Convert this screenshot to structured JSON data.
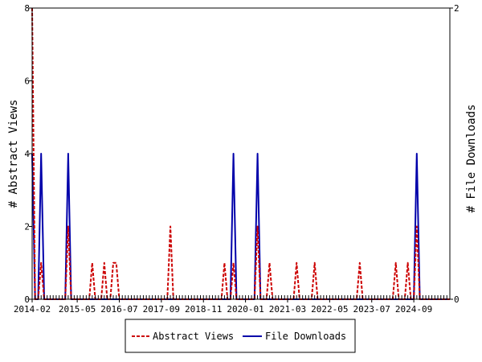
{
  "chart_data": {
    "type": "line",
    "title": "",
    "y_left_label": "# Abstract Views",
    "y_right_label": "# File Downloads",
    "y_left_range": [
      0,
      8
    ],
    "y_left_ticks": [
      "0",
      "2",
      "4",
      "6",
      "8"
    ],
    "y_right_range": [
      0,
      2
    ],
    "y_right_ticks": [
      "0",
      "2"
    ],
    "x_range": [
      "2014-02",
      "2025-09"
    ],
    "x_ticks": [
      "2014-02",
      "2015-05",
      "2016-07",
      "2017-09",
      "2018-11",
      "2020-01",
      "2021-03",
      "2022-05",
      "2023-07",
      "2024-09"
    ],
    "grid": false,
    "legend_position": "bottom",
    "series": [
      {
        "name": "Abstract Views",
        "axis": "left",
        "color": "#cc0000",
        "style": "dashed",
        "points": [
          [
            "2014-02",
            8
          ],
          [
            "2014-03",
            0
          ],
          [
            "2014-04",
            0
          ],
          [
            "2014-05",
            1
          ],
          [
            "2014-06",
            0
          ],
          [
            "2015-01",
            0
          ],
          [
            "2015-02",
            2
          ],
          [
            "2015-03",
            0
          ],
          [
            "2015-09",
            0
          ],
          [
            "2015-10",
            1
          ],
          [
            "2015-11",
            0
          ],
          [
            "2016-01",
            0
          ],
          [
            "2016-02",
            1
          ],
          [
            "2016-03",
            0
          ],
          [
            "2016-04",
            0
          ],
          [
            "2016-05",
            1
          ],
          [
            "2016-06",
            1
          ],
          [
            "2016-07",
            0
          ],
          [
            "2017-11",
            0
          ],
          [
            "2017-12",
            2
          ],
          [
            "2018-01",
            0
          ],
          [
            "2019-05",
            0
          ],
          [
            "2019-06",
            1
          ],
          [
            "2019-07",
            0
          ],
          [
            "2019-08",
            0
          ],
          [
            "2019-09",
            1
          ],
          [
            "2019-10",
            0
          ],
          [
            "2020-04",
            0
          ],
          [
            "2020-05",
            2
          ],
          [
            "2020-06",
            0
          ],
          [
            "2020-08",
            0
          ],
          [
            "2020-09",
            1
          ],
          [
            "2020-10",
            0
          ],
          [
            "2021-05",
            0
          ],
          [
            "2021-06",
            1
          ],
          [
            "2021-07",
            0
          ],
          [
            "2021-11",
            0
          ],
          [
            "2021-12",
            1
          ],
          [
            "2022-01",
            0
          ],
          [
            "2023-02",
            0
          ],
          [
            "2023-03",
            1
          ],
          [
            "2023-04",
            0
          ],
          [
            "2024-02",
            0
          ],
          [
            "2024-03",
            1
          ],
          [
            "2024-04",
            0
          ],
          [
            "2024-06",
            0
          ],
          [
            "2024-07",
            1
          ],
          [
            "2024-08",
            0
          ],
          [
            "2024-09",
            0
          ],
          [
            "2024-10",
            2
          ],
          [
            "2024-11",
            0
          ],
          [
            "2025-09",
            0
          ]
        ]
      },
      {
        "name": "File Downloads",
        "axis": "right",
        "color": "#0000aa",
        "style": "solid",
        "points": [
          [
            "2014-02",
            1
          ],
          [
            "2014-03",
            0
          ],
          [
            "2014-04",
            0
          ],
          [
            "2014-05",
            1
          ],
          [
            "2014-06",
            0
          ],
          [
            "2015-01",
            0
          ],
          [
            "2015-02",
            1
          ],
          [
            "2015-03",
            0
          ],
          [
            "2019-08",
            0
          ],
          [
            "2019-09",
            1
          ],
          [
            "2019-10",
            0
          ],
          [
            "2020-04",
            0
          ],
          [
            "2020-05",
            1
          ],
          [
            "2020-06",
            0
          ],
          [
            "2024-09",
            0
          ],
          [
            "2024-10",
            1
          ],
          [
            "2024-11",
            0
          ],
          [
            "2025-09",
            0
          ]
        ]
      }
    ]
  }
}
